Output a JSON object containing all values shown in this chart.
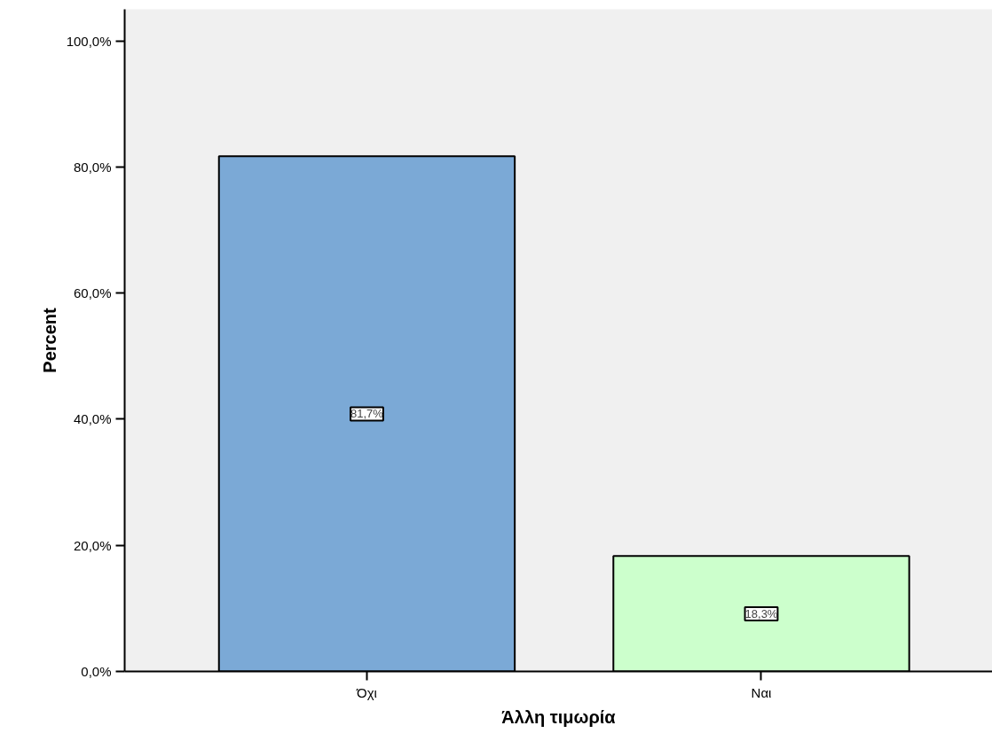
{
  "chart_data": {
    "type": "bar",
    "xlabel": "Άλλη τιμωρία",
    "ylabel": "Percent",
    "categories": [
      "Όχι",
      "Ναι"
    ],
    "values": [
      81.7,
      18.3
    ],
    "colors": [
      "#7ba9d6",
      "#ccffcc"
    ],
    "value_labels": [
      "81,7%",
      "18,3%"
    ],
    "ylim": [
      0,
      105
    ],
    "yticks": [
      {
        "value": 0,
        "label": "0,0%"
      },
      {
        "value": 20,
        "label": "20,0%"
      },
      {
        "value": 40,
        "label": "40,0%"
      },
      {
        "value": 60,
        "label": "60,0%"
      },
      {
        "value": 80,
        "label": "80,0%"
      },
      {
        "value": 100,
        "label": "100,0%"
      }
    ],
    "grid": false
  }
}
